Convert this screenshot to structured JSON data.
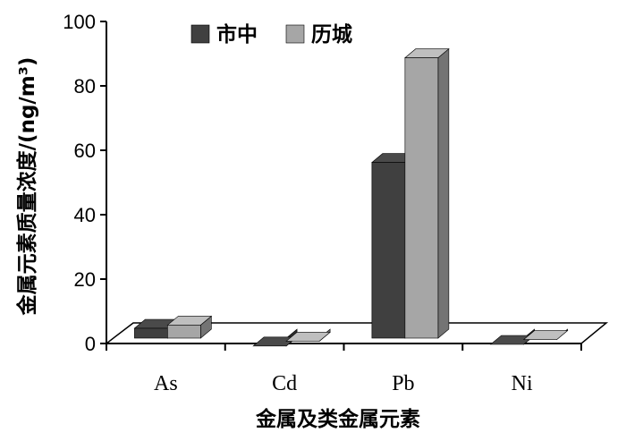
{
  "chart_data": {
    "type": "bar",
    "categories": [
      "As",
      "Cd",
      "Pb",
      "Ni"
    ],
    "series": [
      {
        "name": "市中",
        "values": [
          7.5,
          2.0,
          59.0,
          2.5
        ],
        "color": "#404040"
      },
      {
        "name": "历城",
        "values": [
          8.5,
          3.5,
          91.5,
          4.0
        ],
        "color": "#a6a6a6"
      }
    ],
    "xlabel": "金属及类金属元素",
    "ylabel": "金属元素质量浓度/(ng/m³)",
    "ylim": [
      0,
      100
    ],
    "yticks": [
      "0",
      "20",
      "40",
      "60",
      "80",
      "100"
    ],
    "grid": false,
    "legend": "top-center"
  }
}
